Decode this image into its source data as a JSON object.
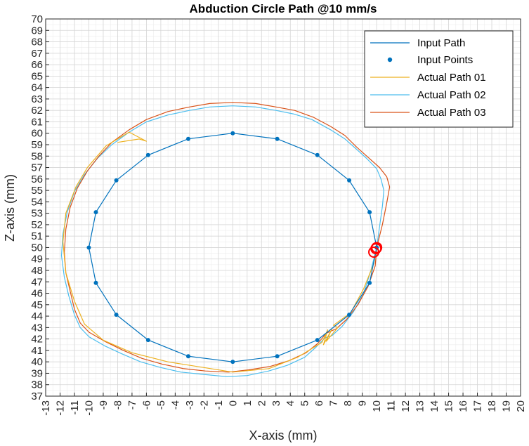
{
  "chart_data": {
    "type": "line",
    "title": "Abduction Circle Path @10 mm/s",
    "xlabel": "X-axis (mm)",
    "ylabel": "Z-axis (mm)",
    "xlim": [
      -13,
      20
    ],
    "ylim": [
      37,
      70
    ],
    "xticks": [
      -13,
      -12,
      -11,
      -10,
      -9,
      -8,
      -7,
      -6,
      -5,
      -4,
      -3,
      -2,
      -1,
      0,
      1,
      2,
      3,
      4,
      5,
      6,
      7,
      8,
      9,
      10,
      11,
      12,
      13,
      14,
      15,
      16,
      17,
      18,
      19,
      20
    ],
    "yticks": [
      37,
      38,
      39,
      40,
      41,
      42,
      43,
      44,
      45,
      46,
      47,
      48,
      49,
      50,
      51,
      52,
      53,
      54,
      55,
      56,
      57,
      58,
      59,
      60,
      61,
      62,
      63,
      64,
      65,
      66,
      67,
      68,
      69,
      70
    ],
    "grid": true,
    "minor_grid": true,
    "legend_position": "top-right",
    "colors": {
      "input": "#0072BD",
      "actual01": "#EDB120",
      "actual02": "#4DBEEE",
      "actual03": "#D95319",
      "marker": "#FF0000"
    },
    "series": [
      {
        "name": "Input Path",
        "style": "line",
        "x": [
          10,
          9.51,
          8.09,
          5.88,
          3.09,
          0,
          -3.09,
          -5.88,
          -8.09,
          -9.51,
          -10,
          -9.51,
          -8.09,
          -5.88,
          -3.09,
          0,
          3.09,
          5.88,
          8.09,
          9.51,
          10
        ],
        "y": [
          50,
          53.09,
          55.88,
          58.09,
          59.51,
          60,
          59.51,
          58.09,
          55.88,
          53.09,
          50,
          46.91,
          44.12,
          41.91,
          40.49,
          40,
          40.49,
          41.91,
          44.12,
          46.91,
          50
        ]
      },
      {
        "name": "Input Points",
        "style": "markers",
        "x": [
          10,
          9.51,
          8.09,
          5.88,
          3.09,
          0,
          -3.09,
          -5.88,
          -8.09,
          -9.51,
          -10,
          -9.51,
          -8.09,
          -5.88,
          -3.09,
          0,
          3.09,
          5.88,
          8.09,
          9.51
        ],
        "y": [
          50,
          53.09,
          55.88,
          58.09,
          59.51,
          60,
          59.51,
          58.09,
          55.88,
          53.09,
          50,
          46.91,
          44.12,
          41.91,
          40.49,
          40,
          40.49,
          41.91,
          44.12,
          46.91
        ]
      },
      {
        "name": "Actual Path 01",
        "style": "line",
        "x": [
          -8.0,
          -6.5,
          -6.0,
          -7.2,
          -8.8,
          -10.1,
          -10.9,
          -11.6,
          -11.8,
          -11.6,
          -11.0,
          -10.3,
          -9.0,
          -7.0,
          -4.5,
          -2.0,
          0,
          2.5,
          4.5,
          6.2,
          6.6,
          6.3,
          6.9,
          6.5,
          7.3,
          7.0,
          8.2,
          9.1,
          9.8,
          10.0
        ],
        "y": [
          59.2,
          59.5,
          59.3,
          60.1,
          58.9,
          57.0,
          55.3,
          53.0,
          50.5,
          47.8,
          45.3,
          43.3,
          41.9,
          40.8,
          40.0,
          39.5,
          39.1,
          39.4,
          40.4,
          41.7,
          42.8,
          41.5,
          42.9,
          41.8,
          43.0,
          43.2,
          44.3,
          46.4,
          48.6,
          50.0
        ]
      },
      {
        "name": "Actual Path 02",
        "style": "line",
        "x": [
          10.0,
          10.2,
          10.4,
          10.5,
          10.3,
          10.0,
          9.3,
          8.6,
          7.8,
          6.8,
          5.5,
          4.2,
          3.0,
          1.6,
          0,
          -1.6,
          -3.0,
          -4.5,
          -6.0,
          -7.2,
          -8.4,
          -9.4,
          -10.3,
          -11.0,
          -11.5,
          -11.8,
          -11.9,
          -11.7,
          -11.4,
          -11.0,
          -10.6,
          -10.0,
          -8.9,
          -7.7,
          -6.4,
          -5.0,
          -3.6,
          -2.0,
          -0.4,
          1.0,
          2.5,
          3.8,
          5.0,
          5.8,
          6.4,
          6.9,
          7.6,
          8.4,
          9.1,
          9.6,
          10.0
        ],
        "y": [
          50.0,
          51.8,
          53.6,
          55.0,
          56.0,
          56.9,
          57.8,
          58.6,
          59.5,
          60.3,
          61.2,
          61.7,
          62.0,
          62.3,
          62.4,
          62.3,
          62.0,
          61.6,
          61.0,
          60.1,
          59.0,
          57.8,
          56.4,
          54.9,
          53.1,
          51.2,
          49.3,
          47.4,
          45.8,
          44.1,
          43.0,
          42.2,
          41.4,
          40.7,
          40.0,
          39.5,
          39.1,
          38.9,
          38.7,
          38.8,
          39.2,
          39.7,
          40.4,
          41.3,
          42.1,
          42.3,
          43.1,
          44.4,
          46.0,
          48.0,
          50.0
        ]
      },
      {
        "name": "Actual Path 03",
        "style": "line",
        "x": [
          10.0,
          10.4,
          10.7,
          10.9,
          10.7,
          10.2,
          9.4,
          8.6,
          7.8,
          6.8,
          5.6,
          4.3,
          3.0,
          1.6,
          0,
          -1.6,
          -3.0,
          -4.5,
          -6.0,
          -7.2,
          -8.4,
          -9.3,
          -10.1,
          -10.8,
          -11.3,
          -11.6,
          -11.7,
          -11.6,
          -11.3,
          -11.0,
          -10.6,
          -10.0,
          -8.9,
          -7.6,
          -6.3,
          -4.9,
          -3.4,
          -1.9,
          -0.3,
          1.1,
          2.6,
          3.9,
          5.1,
          5.9,
          6.5,
          7.2,
          7.9,
          8.7,
          9.4,
          9.9,
          10.0
        ],
        "y": [
          50.0,
          52.0,
          53.9,
          55.3,
          56.2,
          57.0,
          57.9,
          58.8,
          59.8,
          60.6,
          61.4,
          62.0,
          62.3,
          62.6,
          62.7,
          62.6,
          62.3,
          61.9,
          61.2,
          60.3,
          59.2,
          58.0,
          56.7,
          55.2,
          53.5,
          51.6,
          49.6,
          47.8,
          46.2,
          44.6,
          43.4,
          42.6,
          41.8,
          41.0,
          40.3,
          39.8,
          39.4,
          39.2,
          39.1,
          39.3,
          39.6,
          40.1,
          40.8,
          41.6,
          42.5,
          42.9,
          43.7,
          45.0,
          46.6,
          48.4,
          50.0
        ]
      }
    ],
    "endpoint_markers": [
      {
        "x": 10.0,
        "y": 50.0
      },
      {
        "x": 9.95,
        "y": 49.9
      },
      {
        "x": 9.8,
        "y": 49.6
      }
    ]
  }
}
